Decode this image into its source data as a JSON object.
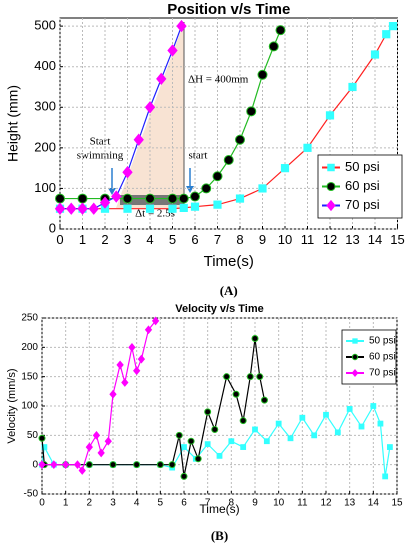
{
  "chart_data": [
    {
      "type": "line",
      "title": "Position v/s Time",
      "x_label": "Time(s)",
      "y_label": "Height (mm)",
      "caption": "(A)",
      "xlim": [
        0,
        15
      ],
      "xticks": [
        0,
        1,
        2,
        3,
        4,
        5,
        6,
        7,
        8,
        9,
        10,
        11,
        12,
        13,
        14,
        15
      ],
      "ylim": [
        0,
        520
      ],
      "yticks": [
        0,
        100,
        200,
        300,
        400,
        500
      ],
      "grid": true,
      "legend": "center right",
      "annotations": [
        "ΔH = 400mm",
        "Start",
        "swimming",
        "start",
        "Δt = 2.5s"
      ],
      "series": [
        {
          "name": "50 psi",
          "color": "#33ffff",
          "line_color": "#ff2020",
          "marker": "square",
          "x": [
            0,
            1,
            2,
            3,
            4,
            5,
            5.5,
            6,
            7,
            8,
            9,
            10,
            11,
            12,
            13,
            14,
            14.5,
            14.8
          ],
          "values": [
            50,
            50,
            50,
            50,
            50,
            50,
            52,
            55,
            60,
            75,
            100,
            150,
            200,
            280,
            350,
            430,
            480,
            500
          ]
        },
        {
          "name": "60 psi",
          "color": "#000000",
          "line_color": "#22bb22",
          "marker": "circle",
          "x": [
            0,
            1,
            2,
            3,
            4,
            5,
            5.5,
            6,
            6.5,
            7,
            7.5,
            8,
            8.5,
            9,
            9.5,
            9.8
          ],
          "values": [
            75,
            75,
            75,
            75,
            75,
            75,
            75,
            80,
            100,
            130,
            170,
            220,
            290,
            380,
            450,
            490
          ]
        },
        {
          "name": "70 psi",
          "color": "#ff00ff",
          "line_color": "#2020ff",
          "marker": "diamond",
          "x": [
            0,
            0.5,
            1,
            1.5,
            2,
            2.5,
            3,
            3.5,
            4,
            4.5,
            5,
            5.4
          ],
          "values": [
            50,
            50,
            50,
            50,
            65,
            80,
            140,
            220,
            300,
            370,
            440,
            500
          ]
        }
      ]
    },
    {
      "type": "line",
      "title": "Velocity v/s Time",
      "x_label": "Time(s)",
      "y_label": "Velocity (mm/s)",
      "caption": "(B)",
      "xlim": [
        0,
        15
      ],
      "xticks": [
        0,
        1,
        2,
        3,
        4,
        5,
        6,
        7,
        8,
        9,
        10,
        11,
        12,
        13,
        14,
        15
      ],
      "ylim": [
        -50,
        250
      ],
      "yticks": [
        -50,
        0,
        50,
        100,
        150,
        200,
        250
      ],
      "grid": true,
      "legend": "upper right",
      "series": [
        {
          "name": "50 psi",
          "color": "#33ffff",
          "line_color": "#33ffff",
          "marker": "square",
          "x": [
            0,
            0.1,
            0.5,
            1,
            2,
            3,
            4,
            5,
            5.5,
            6,
            6.5,
            7,
            7.5,
            8,
            8.5,
            9,
            9.5,
            10,
            10.5,
            11,
            11.5,
            12,
            12.5,
            13,
            13.5,
            14,
            14.3,
            14.5,
            14.7
          ],
          "values": [
            0,
            30,
            0,
            0,
            0,
            0,
            0,
            0,
            -5,
            30,
            10,
            35,
            15,
            40,
            30,
            60,
            40,
            70,
            45,
            80,
            50,
            85,
            55,
            95,
            65,
            100,
            70,
            -20,
            30
          ]
        },
        {
          "name": "60 psi",
          "color": "#000000",
          "line_color": "#000000",
          "marker": "circle",
          "x": [
            0,
            0.1,
            1,
            2,
            3,
            4,
            5,
            5.5,
            5.8,
            6,
            6.3,
            6.6,
            7,
            7.3,
            7.8,
            8.2,
            8.5,
            8.8,
            9,
            9.2,
            9.4
          ],
          "values": [
            45,
            0,
            0,
            0,
            0,
            0,
            0,
            0,
            50,
            -20,
            40,
            10,
            90,
            60,
            150,
            120,
            75,
            150,
            215,
            150,
            110
          ]
        },
        {
          "name": "70 psi",
          "color": "#ff00ff",
          "line_color": "#ff00ff",
          "marker": "diamond",
          "x": [
            0,
            0.5,
            1,
            1.5,
            1.7,
            2,
            2.3,
            2.5,
            2.8,
            3,
            3.3,
            3.5,
            3.8,
            4,
            4.2,
            4.5,
            4.8
          ],
          "values": [
            0,
            0,
            0,
            0,
            -10,
            30,
            50,
            20,
            40,
            120,
            170,
            140,
            200,
            160,
            180,
            230,
            245
          ]
        }
      ]
    }
  ]
}
